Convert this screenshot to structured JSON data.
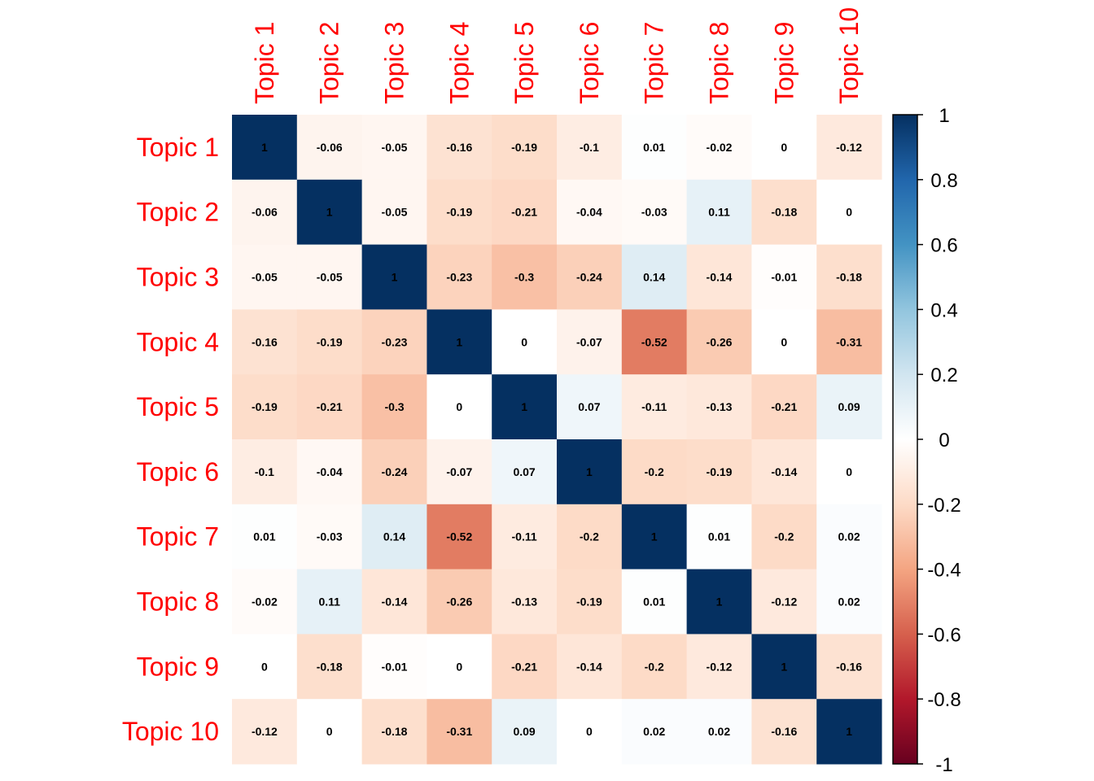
{
  "chart_data": {
    "type": "heatmap",
    "title": "",
    "row_labels": [
      "Topic 1",
      "Topic 2",
      "Topic 3",
      "Topic 4",
      "Topic 5",
      "Topic 6",
      "Topic 7",
      "Topic 8",
      "Topic 9",
      "Topic 10"
    ],
    "col_labels": [
      "Topic 1",
      "Topic 2",
      "Topic 3",
      "Topic 4",
      "Topic 5",
      "Topic 6",
      "Topic 7",
      "Topic 8",
      "Topic 9",
      "Topic 10"
    ],
    "values": [
      [
        1,
        -0.06,
        -0.05,
        -0.16,
        -0.19,
        -0.1,
        0.01,
        -0.02,
        0,
        -0.12
      ],
      [
        -0.06,
        1,
        -0.05,
        -0.19,
        -0.21,
        -0.04,
        -0.03,
        0.11,
        -0.18,
        0
      ],
      [
        -0.05,
        -0.05,
        1,
        -0.23,
        -0.3,
        -0.24,
        0.14,
        -0.14,
        -0.01,
        -0.18
      ],
      [
        -0.16,
        -0.19,
        -0.23,
        1,
        0,
        -0.07,
        -0.52,
        -0.26,
        0,
        -0.31
      ],
      [
        -0.19,
        -0.21,
        -0.3,
        0,
        1,
        0.07,
        -0.11,
        -0.13,
        -0.21,
        0.09
      ],
      [
        -0.1,
        -0.04,
        -0.24,
        -0.07,
        0.07,
        1,
        -0.2,
        -0.19,
        -0.14,
        0
      ],
      [
        0.01,
        -0.03,
        0.14,
        -0.52,
        -0.11,
        -0.2,
        1,
        0.01,
        -0.2,
        0.02
      ],
      [
        -0.02,
        0.11,
        -0.14,
        -0.26,
        -0.13,
        -0.19,
        0.01,
        1,
        -0.12,
        0.02
      ],
      [
        0,
        -0.18,
        -0.01,
        0,
        -0.21,
        -0.14,
        -0.2,
        -0.12,
        1,
        -0.16
      ],
      [
        -0.12,
        0,
        -0.18,
        -0.31,
        0.09,
        0,
        0.02,
        0.02,
        -0.16,
        1
      ]
    ],
    "value_labels": [
      [
        "1",
        "-0.06",
        "-0.05",
        "-0.16",
        "-0.19",
        "-0.1",
        "0.01",
        "-0.02",
        "0",
        "-0.12"
      ],
      [
        "-0.06",
        "1",
        "-0.05",
        "-0.19",
        "-0.21",
        "-0.04",
        "-0.03",
        "0.11",
        "-0.18",
        "0"
      ],
      [
        "-0.05",
        "-0.05",
        "1",
        "-0.23",
        "-0.3",
        "-0.24",
        "0.14",
        "-0.14",
        "-0.01",
        "-0.18"
      ],
      [
        "-0.16",
        "-0.19",
        "-0.23",
        "1",
        "0",
        "-0.07",
        "-0.52",
        "-0.26",
        "0",
        "-0.31"
      ],
      [
        "-0.19",
        "-0.21",
        "-0.3",
        "0",
        "1",
        "0.07",
        "-0.11",
        "-0.13",
        "-0.21",
        "0.09"
      ],
      [
        "-0.1",
        "-0.04",
        "-0.24",
        "-0.07",
        "0.07",
        "1",
        "-0.2",
        "-0.19",
        "-0.14",
        "0"
      ],
      [
        "0.01",
        "-0.03",
        "0.14",
        "-0.52",
        "-0.11",
        "-0.2",
        "1",
        "0.01",
        "-0.2",
        "0.02"
      ],
      [
        "-0.02",
        "0.11",
        "-0.14",
        "-0.26",
        "-0.13",
        "-0.19",
        "0.01",
        "1",
        "-0.12",
        "0.02"
      ],
      [
        "0",
        "-0.18",
        "-0.01",
        "0",
        "-0.21",
        "-0.14",
        "-0.2",
        "-0.12",
        "1",
        "-0.16"
      ],
      [
        "-0.12",
        "0",
        "-0.18",
        "-0.31",
        "0.09",
        "0",
        "0.02",
        "0.02",
        "-0.16",
        "1"
      ]
    ],
    "color_scale": {
      "range": [
        -1,
        1
      ],
      "ticks": [
        1,
        0.8,
        0.6,
        0.4,
        0.2,
        0,
        -0.2,
        -0.4,
        -0.6,
        -0.8,
        -1
      ],
      "tick_labels": [
        "1",
        "0.8",
        "0.6",
        "0.4",
        "0.2",
        "0",
        "-0.2",
        "-0.4",
        "-0.6",
        "-0.8",
        "-1"
      ],
      "palette": [
        "#67001F",
        "#B2182B",
        "#D6604D",
        "#F4A582",
        "#FDDBC7",
        "#FFFFFF",
        "#D1E5F0",
        "#92C5DE",
        "#4393C3",
        "#2166AC",
        "#053061"
      ]
    },
    "label_color": "#FF0000",
    "grid": false,
    "legend": "right"
  }
}
